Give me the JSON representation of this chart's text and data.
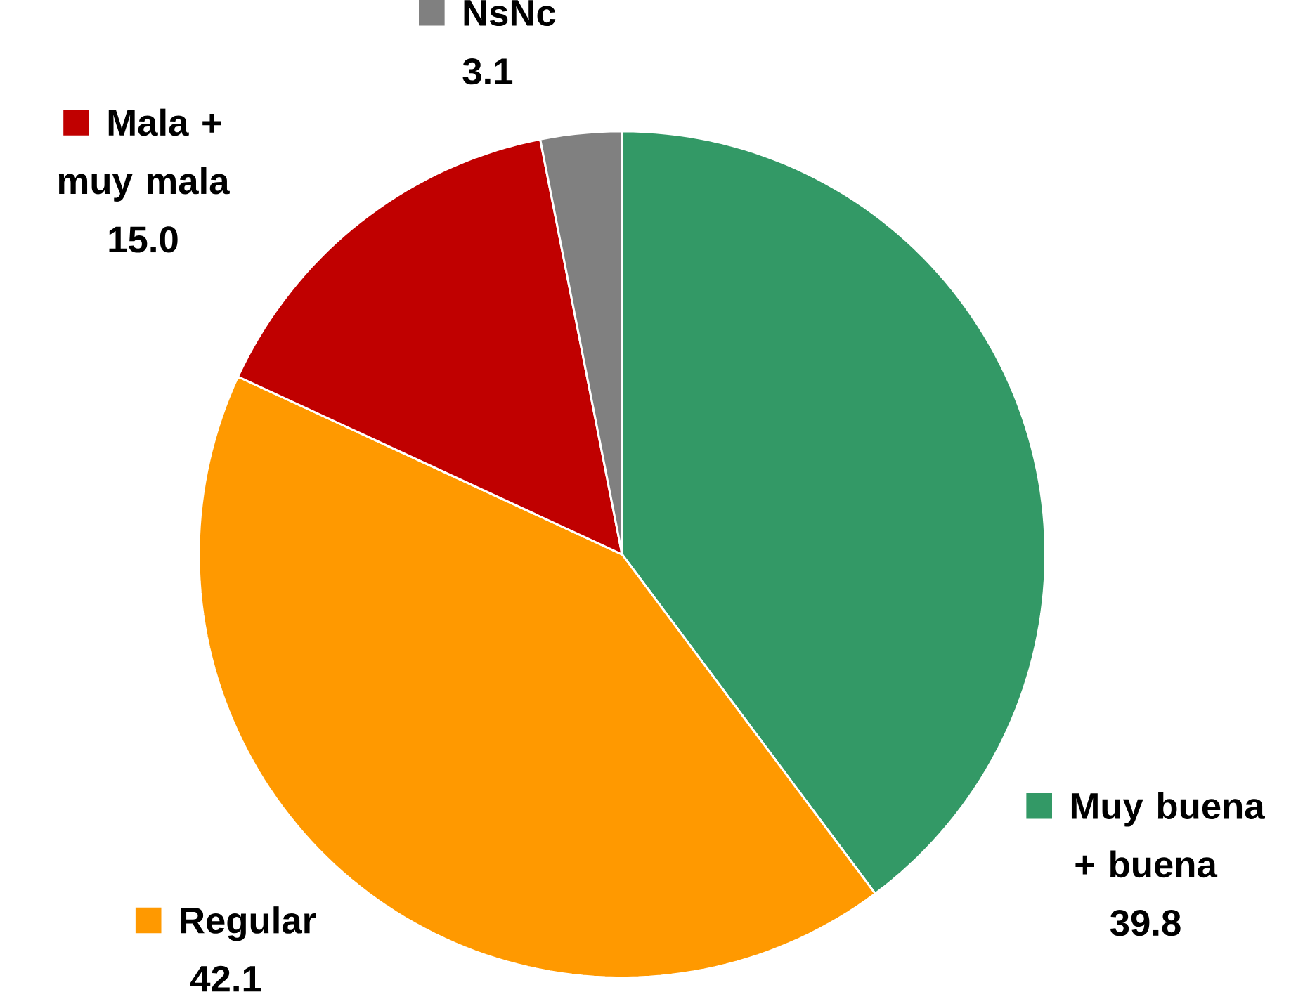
{
  "chart_data": {
    "type": "pie",
    "categories": [
      "Muy buena + buena",
      "Regular",
      "Mala + muy mala",
      "NsNc"
    ],
    "values": [
      39.8,
      42.1,
      15.0,
      3.1
    ],
    "value_labels": [
      "39.8",
      "42.1",
      "15.0",
      "3.1"
    ],
    "colors": [
      "#339966",
      "#ff9900",
      "#c00000",
      "#808080"
    ],
    "legend": "left"
  }
}
